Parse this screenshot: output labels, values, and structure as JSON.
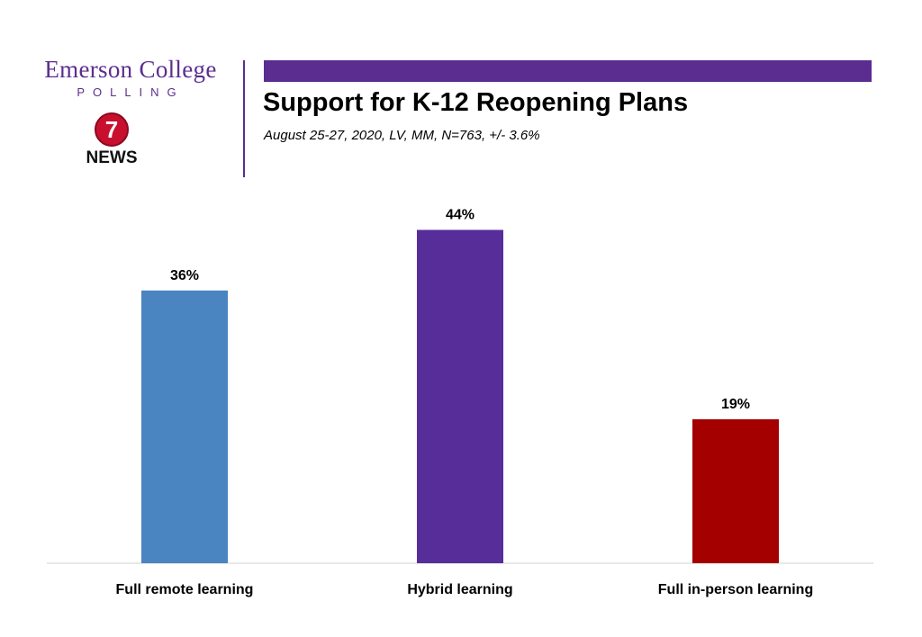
{
  "brand": {
    "name": "Emerson College",
    "sub": "POLLING",
    "news_number": "7",
    "news_label": "NEWS"
  },
  "colors": {
    "accent": "#5b2d90",
    "news_red": "#c8102e"
  },
  "chart_data": {
    "type": "bar",
    "title": "Support for K-12 Reopening Plans",
    "subtitle": "August 25-27, 2020, LV, MM, N=763, +/- 3.6%",
    "categories": [
      "Full remote learning",
      "Hybrid learning",
      "Full in-person learning"
    ],
    "values": [
      36,
      44,
      19
    ],
    "data_labels": [
      "36%",
      "44%",
      "19%"
    ],
    "colors": [
      "#4a84c1",
      "#572d9a",
      "#a50000"
    ],
    "ylim": [
      0,
      50
    ],
    "grid": false,
    "legend": "none"
  }
}
